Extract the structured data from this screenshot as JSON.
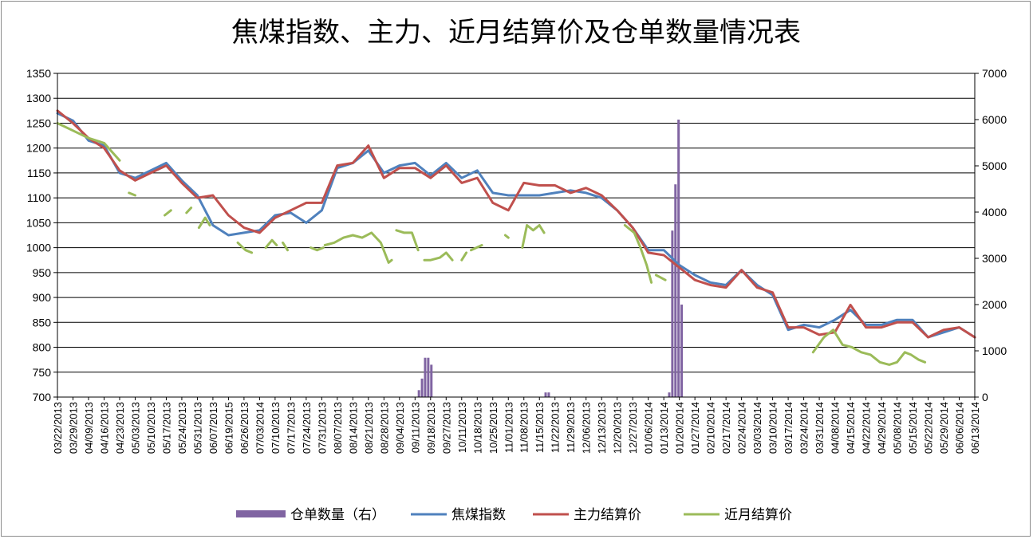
{
  "chart_data": {
    "type": "line",
    "title": "焦煤指数、主力、近月结算价及仓单数量情况表",
    "y_left": {
      "min": 700,
      "max": 1350,
      "step": 50,
      "ticks": [
        "1350",
        "1300",
        "1250",
        "1200",
        "1150",
        "1100",
        "1050",
        "1000",
        "950",
        "900",
        "850",
        "800",
        "750",
        "700"
      ]
    },
    "y_right": {
      "min": 0,
      "max": 7000,
      "step": 1000,
      "ticks": [
        "7000",
        "6000",
        "5000",
        "4000",
        "3000",
        "2000",
        "1000",
        "0"
      ]
    },
    "x_labels": [
      "03/22/2013",
      "03/29/2013",
      "04/09/2013",
      "04/16/2013",
      "04/23/2013",
      "05/03/2013",
      "05/10/2013",
      "05/17/2013",
      "05/24/2013",
      "05/31/2013",
      "06/07/2013",
      "06/19/2015",
      "06/26/2013",
      "07/03/2014",
      "07/10/2013",
      "07/17/2013",
      "07/24/2013",
      "07/31/2013",
      "08/07/2013",
      "08/14/2013",
      "08/21/2013",
      "08/28/2013",
      "09/04/2013",
      "09/11/2013",
      "09/18/2013",
      "09/27/2013",
      "10/11/2013",
      "10/18/2013",
      "10/25/2013",
      "11/01/2013",
      "11/08/2013",
      "11/15/2013",
      "11/22/2013",
      "11/29/2013",
      "12/06/2013",
      "12/13/2013",
      "12/20/2013",
      "12/27/2013",
      "01/06/2014",
      "01/13/2014",
      "01/20/2014",
      "01/27/2014",
      "02/10/2014",
      "02/17/2014",
      "02/24/2014",
      "03/03/2014",
      "03/10/2014",
      "03/17/2014",
      "03/24/2014",
      "03/31/2014",
      "04/08/2014",
      "04/15/2014",
      "04/22/2014",
      "04/29/2014",
      "05/08/2014",
      "05/15/2014",
      "05/22/2014",
      "05/29/2014",
      "06/06/2014",
      "06/13/2014"
    ],
    "grid": true,
    "legend_position": "bottom",
    "series": [
      {
        "name": "仓单数量（右）",
        "kind": "bar",
        "axis": "right",
        "color": "#8064a2",
        "points": [
          [
            23.25,
            150
          ],
          [
            23.45,
            400
          ],
          [
            23.65,
            850
          ],
          [
            23.85,
            850
          ],
          [
            24.05,
            700
          ],
          [
            31.4,
            100
          ],
          [
            31.6,
            100
          ],
          [
            39.35,
            100
          ],
          [
            39.55,
            3600
          ],
          [
            39.75,
            4600
          ],
          [
            39.95,
            6000
          ],
          [
            40.15,
            2000
          ]
        ]
      },
      {
        "name": "焦煤指数",
        "kind": "line",
        "axis": "left",
        "color": "#4f81bd",
        "values": [
          1270,
          1255,
          1215,
          1205,
          1150,
          1140,
          1155,
          1170,
          1135,
          1105,
          1045,
          1025,
          1030,
          1035,
          1065,
          1070,
          1050,
          1075,
          1160,
          1170,
          1195,
          1150,
          1165,
          1170,
          1145,
          1170,
          1140,
          1155,
          1110,
          1105,
          1105,
          1105,
          1110,
          1115,
          1110,
          1100,
          1075,
          1040,
          995,
          995,
          965,
          945,
          930,
          925,
          955,
          925,
          905,
          835,
          845,
          840,
          855,
          875,
          845,
          845,
          855,
          855,
          820,
          830,
          840,
          820
        ]
      },
      {
        "name": "主力结算价",
        "kind": "line",
        "axis": "left",
        "color": "#c0504d",
        "values": [
          1275,
          1250,
          1220,
          1200,
          1155,
          1135,
          1150,
          1165,
          1130,
          1100,
          1105,
          1065,
          1040,
          1030,
          1060,
          1075,
          1090,
          1090,
          1165,
          1170,
          1205,
          1140,
          1160,
          1160,
          1140,
          1165,
          1130,
          1140,
          1090,
          1075,
          1130,
          1125,
          1125,
          1110,
          1120,
          1105,
          1075,
          1040,
          990,
          985,
          960,
          935,
          925,
          920,
          955,
          920,
          910,
          840,
          840,
          825,
          830,
          885,
          840,
          840,
          850,
          850,
          820,
          835,
          840,
          820
        ]
      },
      {
        "name": "近月结算价",
        "kind": "line",
        "axis": "left",
        "color": "#9bbb59",
        "segments": [
          [
            [
              0,
              1250
            ],
            [
              1,
              1235
            ],
            [
              2,
              1220
            ],
            [
              3,
              1210
            ],
            [
              4,
              1175
            ]
          ],
          [
            [
              4.6,
              1110
            ],
            [
              5.0,
              1105
            ]
          ],
          [
            [
              6.9,
              1065
            ],
            [
              7.3,
              1075
            ]
          ],
          [
            [
              8.3,
              1070
            ],
            [
              8.6,
              1080
            ]
          ],
          [
            [
              9.1,
              1040
            ],
            [
              9.5,
              1060
            ],
            [
              9.8,
              1045
            ]
          ],
          [
            [
              11.6,
              1010
            ],
            [
              12.1,
              995
            ],
            [
              12.5,
              990
            ]
          ],
          [
            [
              13.4,
              1000
            ],
            [
              13.8,
              1015
            ],
            [
              14.1,
              1005
            ]
          ],
          [
            [
              14.5,
              1010
            ],
            [
              14.8,
              995
            ]
          ],
          [
            [
              16.3,
              1000
            ],
            [
              16.7,
              995
            ],
            [
              17.1,
              1000
            ]
          ],
          [
            [
              17.2,
              1005
            ],
            [
              17.8,
              1010
            ],
            [
              18.4,
              1020
            ],
            [
              19.0,
              1025
            ],
            [
              19.6,
              1020
            ],
            [
              20.2,
              1030
            ],
            [
              20.8,
              1010
            ],
            [
              21.3,
              970
            ],
            [
              21.5,
              975
            ]
          ],
          [
            [
              21.8,
              1035
            ],
            [
              22.3,
              1030
            ],
            [
              22.8,
              1030
            ],
            [
              23.2,
              995
            ]
          ],
          [
            [
              23.6,
              975
            ],
            [
              24.0,
              975
            ],
            [
              24.6,
              980
            ],
            [
              25.0,
              990
            ],
            [
              25.4,
              975
            ]
          ],
          [
            [
              26.0,
              975
            ],
            [
              26.3,
              990
            ]
          ],
          [
            [
              26.6,
              995
            ],
            [
              27.3,
              1005
            ]
          ],
          [
            [
              28.8,
              1025
            ],
            [
              29.0,
              1020
            ]
          ],
          [
            [
              29.9,
              1000
            ],
            [
              30.2,
              1045
            ],
            [
              30.6,
              1035
            ],
            [
              31.0,
              1045
            ],
            [
              31.3,
              1030
            ]
          ],
          [
            [
              36.5,
              1045
            ],
            [
              37.1,
              1030
            ],
            [
              37.5,
              1000
            ],
            [
              37.9,
              965
            ],
            [
              38.2,
              930
            ]
          ],
          [
            [
              38.5,
              945
            ],
            [
              38.8,
              940
            ],
            [
              39.1,
              935
            ]
          ],
          [
            [
              48.6,
              790
            ],
            [
              49.3,
              820
            ],
            [
              49.9,
              835
            ],
            [
              50.5,
              805
            ],
            [
              51.1,
              800
            ],
            [
              51.7,
              790
            ],
            [
              52.3,
              785
            ],
            [
              52.9,
              770
            ],
            [
              53.5,
              765
            ],
            [
              54.0,
              770
            ],
            [
              54.5,
              790
            ],
            [
              54.9,
              785
            ],
            [
              55.4,
              775
            ],
            [
              55.8,
              770
            ]
          ]
        ]
      }
    ]
  }
}
